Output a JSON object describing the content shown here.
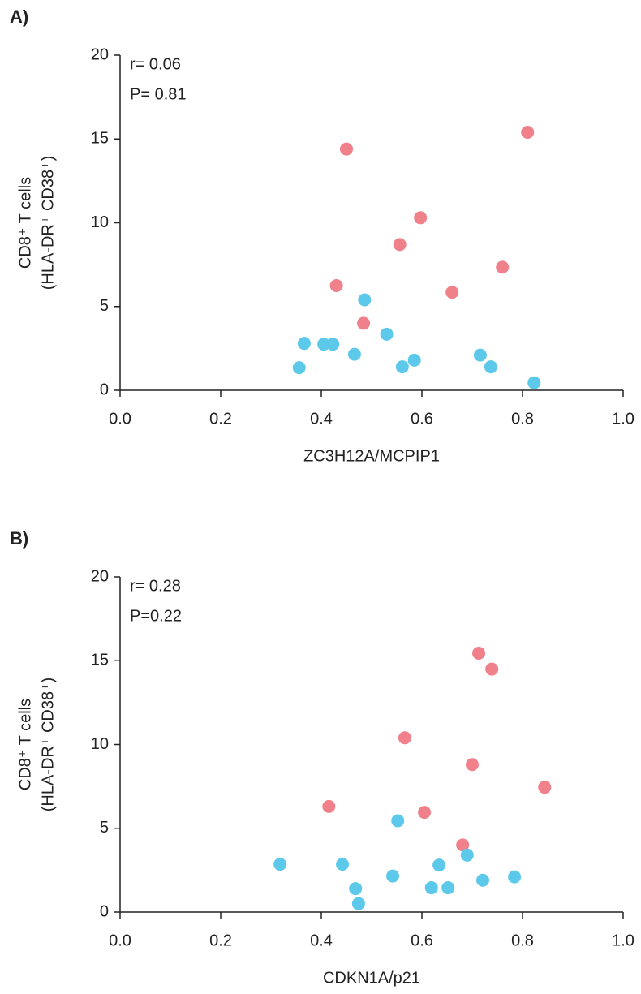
{
  "chart_data": [
    {
      "type": "scatter",
      "panel": "A)",
      "xlabel": "ZC3H12A/MCPIP1",
      "ylabel": [
        "CD8⁺ T cells",
        "(HLA-DR⁺ CD38⁺)"
      ],
      "annotations": [
        "r= 0.06",
        "P= 0.81"
      ],
      "xlim": [
        0,
        1
      ],
      "ylim": [
        0,
        20
      ],
      "xticks": [
        {
          "value": 0,
          "label": "0.0"
        },
        {
          "value": 0.2,
          "label": "0.2"
        },
        {
          "value": 0.4,
          "label": "0.4"
        },
        {
          "value": 0.6,
          "label": "0.6"
        },
        {
          "value": 0.8,
          "label": "0.8"
        },
        {
          "value": 1,
          "label": "1.0"
        }
      ],
      "yticks": [
        0,
        5,
        10,
        15,
        20
      ],
      "series": [
        {
          "color": "#f0808a",
          "x": [
            0.45,
            0.81,
            0.597,
            0.556,
            0.76,
            0.43,
            0.66,
            0.484
          ],
          "y": [
            14.4,
            15.4,
            10.3,
            8.7,
            7.35,
            6.25,
            5.85,
            4.0
          ]
        },
        {
          "color": "#5dc9ea",
          "x": [
            0.486,
            0.53,
            0.366,
            0.405,
            0.423,
            0.466,
            0.716,
            0.585,
            0.356,
            0.561,
            0.737,
            0.823
          ],
          "y": [
            5.4,
            3.35,
            2.8,
            2.75,
            2.75,
            2.15,
            2.1,
            1.8,
            1.35,
            1.4,
            1.4,
            0.45
          ]
        }
      ]
    },
    {
      "type": "scatter",
      "panel": "B)",
      "xlabel": "CDKN1A/p21",
      "ylabel": [
        "CD8⁺ T cells",
        "(HLA-DR⁺ CD38⁺)"
      ],
      "annotations": [
        "r= 0.28",
        "P=0.22"
      ],
      "xlim": [
        0,
        1
      ],
      "ylim": [
        0,
        20
      ],
      "xticks": [
        {
          "value": 0,
          "label": "0.0"
        },
        {
          "value": 0.2,
          "label": "0.2"
        },
        {
          "value": 0.4,
          "label": "0.4"
        },
        {
          "value": 0.6,
          "label": "0.6"
        },
        {
          "value": 0.8,
          "label": "0.8"
        },
        {
          "value": 1,
          "label": "1.0"
        }
      ],
      "yticks": [
        0,
        5,
        10,
        15,
        20
      ],
      "series": [
        {
          "color": "#f0808a",
          "x": [
            0.713,
            0.739,
            0.566,
            0.7,
            0.844,
            0.415,
            0.605,
            0.681
          ],
          "y": [
            15.45,
            14.5,
            10.4,
            8.8,
            7.45,
            6.3,
            5.95,
            4.0
          ]
        },
        {
          "color": "#5dc9ea",
          "x": [
            0.552,
            0.69,
            0.318,
            0.442,
            0.634,
            0.542,
            0.784,
            0.721,
            0.468,
            0.619,
            0.652,
            0.474
          ],
          "y": [
            5.45,
            3.4,
            2.85,
            2.85,
            2.8,
            2.15,
            2.1,
            1.9,
            1.4,
            1.45,
            1.45,
            0.5
          ]
        }
      ]
    }
  ]
}
